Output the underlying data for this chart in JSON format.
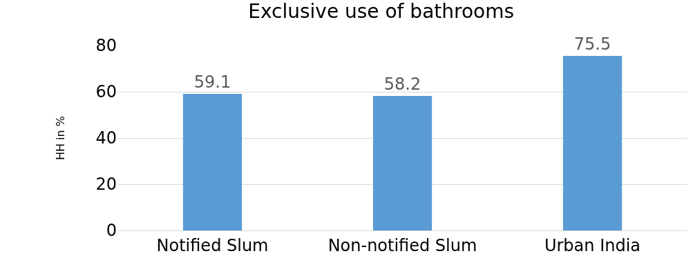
{
  "chart_data": {
    "type": "bar",
    "title": "Exclusive use of bathrooms",
    "ylabel": "HH in %",
    "categories": [
      "Notified Slum",
      "Non-notified Slum",
      "Urban India"
    ],
    "values": [
      59.1,
      58.2,
      75.5
    ],
    "color": "#5b9bd5",
    "ylim": [
      0,
      80
    ],
    "yticks": [
      0,
      20,
      40,
      60,
      80
    ],
    "grid": "y",
    "data_labels": true
  }
}
